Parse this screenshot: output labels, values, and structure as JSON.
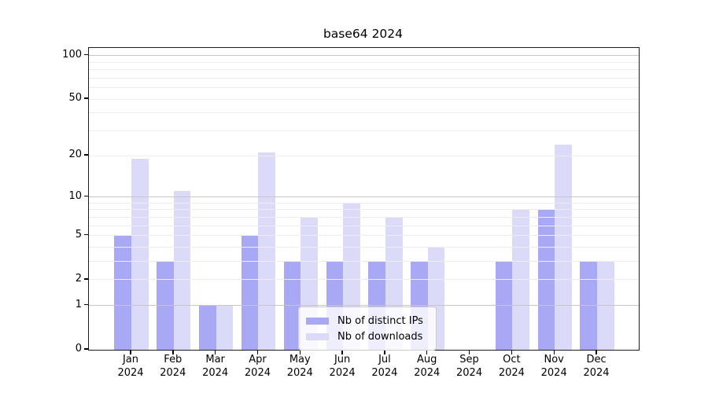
{
  "chart_data": {
    "type": "bar",
    "title": "base64 2024",
    "y_scale": "log10(1+x)",
    "grid": true,
    "categories": [
      "Jan",
      "Feb",
      "Mar",
      "Apr",
      "May",
      "Jun",
      "Jul",
      "Aug",
      "Sep",
      "Oct",
      "Nov",
      "Dec"
    ],
    "x_tick_year": "2024",
    "series": [
      {
        "name": "Nb of distinct IPs",
        "color": "#a8a8f5",
        "values": [
          5,
          3,
          1,
          5,
          3,
          3,
          3,
          3,
          0,
          3,
          8,
          3
        ]
      },
      {
        "name": "Nb of downloads",
        "color": "#dbdbf9",
        "values": [
          19,
          11,
          1,
          21,
          7,
          9,
          7,
          4,
          0,
          8,
          24,
          3
        ]
      }
    ],
    "y_ticks": [
      0,
      1,
      2,
      5,
      10,
      20,
      50,
      100
    ],
    "y_major_gridlines": [
      1,
      10,
      100
    ],
    "y_minor_gridlines": [
      2,
      3,
      4,
      5,
      6,
      7,
      8,
      9,
      20,
      30,
      40,
      50,
      60,
      70,
      80,
      90
    ],
    "ylim": [
      0,
      100
    ],
    "legend": {
      "position": "lower center"
    }
  },
  "colors": {
    "major_grid": "#c6c6c6",
    "minor_grid": "#ededed",
    "spine": "#1c1c1c",
    "text": "#000000"
  }
}
